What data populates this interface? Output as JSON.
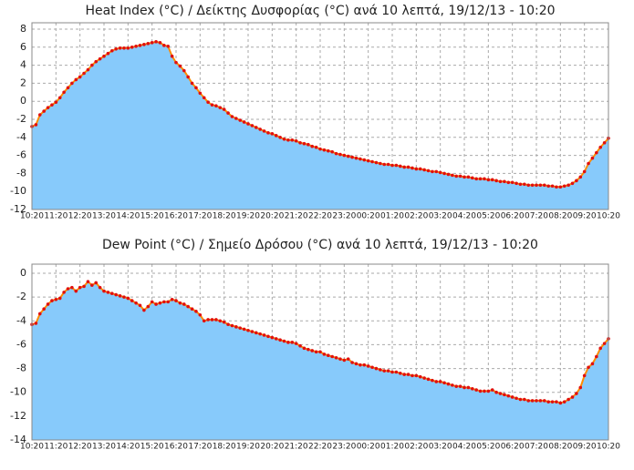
{
  "chart_data": [
    {
      "type": "area",
      "title": "Heat Index (°C) / Δείκτης Δυσφορίας (°C) ανά 10 λεπτά,  19/12/13 - 10:20",
      "categories": [
        "10:20",
        null,
        null,
        null,
        null,
        null,
        "11:20",
        null,
        null,
        null,
        null,
        null,
        "12:20",
        null,
        null,
        null,
        null,
        null,
        "13:20",
        null,
        null,
        null,
        null,
        null,
        "14:20",
        null,
        null,
        null,
        null,
        null,
        "15:20",
        null,
        null,
        null,
        null,
        null,
        "16:20",
        null,
        null,
        null,
        null,
        null,
        "17:20",
        null,
        null,
        null,
        null,
        null,
        "18:20",
        null,
        null,
        null,
        null,
        null,
        "19:20",
        null,
        null,
        null,
        null,
        null,
        "20:20",
        null,
        null,
        null,
        null,
        null,
        "21:20",
        null,
        null,
        null,
        null,
        null,
        "22:20",
        null,
        null,
        null,
        null,
        null,
        "23:20",
        null,
        null,
        null,
        null,
        null,
        "00:20",
        null,
        null,
        null,
        null,
        null,
        "01:20",
        null,
        null,
        null,
        null,
        null,
        "02:20",
        null,
        null,
        null,
        null,
        null,
        "03:20",
        null,
        null,
        null,
        null,
        null,
        "04:20",
        null,
        null,
        null,
        null,
        null,
        "05:20",
        null,
        null,
        null,
        null,
        null,
        "06:20",
        null,
        null,
        null,
        null,
        null,
        "07:20",
        null,
        null,
        null,
        null,
        null,
        "08:20",
        null,
        null,
        null,
        null,
        null,
        "09:20",
        null,
        null,
        null,
        null,
        null,
        "10:20"
      ],
      "values": [
        -2.8,
        -2.6,
        -1.5,
        -1.1,
        -0.7,
        -0.4,
        -0.1,
        0.4,
        1.0,
        1.5,
        2.0,
        2.4,
        2.7,
        3.1,
        3.5,
        4.0,
        4.4,
        4.7,
        5.0,
        5.3,
        5.6,
        5.8,
        5.9,
        5.9,
        5.9,
        6.0,
        6.1,
        6.2,
        6.3,
        6.4,
        6.5,
        6.6,
        6.5,
        6.2,
        6.1,
        5.0,
        4.3,
        3.9,
        3.4,
        2.7,
        2.0,
        1.5,
        0.9,
        0.4,
        -0.1,
        -0.4,
        -0.5,
        -0.7,
        -0.9,
        -1.3,
        -1.7,
        -1.9,
        -2.1,
        -2.3,
        -2.5,
        -2.7,
        -2.9,
        -3.1,
        -3.3,
        -3.5,
        -3.6,
        -3.8,
        -4.0,
        -4.2,
        -4.3,
        -4.3,
        -4.4,
        -4.6,
        -4.7,
        -4.8,
        -5.0,
        -5.1,
        -5.3,
        -5.4,
        -5.5,
        -5.6,
        -5.8,
        -5.9,
        -6.0,
        -6.1,
        -6.2,
        -6.3,
        -6.4,
        -6.5,
        -6.6,
        -6.7,
        -6.8,
        -6.9,
        -7.0,
        -7.0,
        -7.1,
        -7.1,
        -7.2,
        -7.3,
        -7.3,
        -7.4,
        -7.5,
        -7.5,
        -7.6,
        -7.7,
        -7.8,
        -7.8,
        -7.9,
        -8.0,
        -8.1,
        -8.2,
        -8.3,
        -8.3,
        -8.4,
        -8.4,
        -8.5,
        -8.6,
        -8.6,
        -8.6,
        -8.7,
        -8.7,
        -8.8,
        -8.9,
        -8.9,
        -9.0,
        -9.0,
        -9.1,
        -9.2,
        -9.2,
        -9.3,
        -9.3,
        -9.3,
        -9.3,
        -9.3,
        -9.4,
        -9.4,
        -9.5,
        -9.5,
        -9.4,
        -9.3,
        -9.1,
        -8.8,
        -8.4,
        -7.8,
        -6.9,
        -6.3,
        -5.7,
        -5.1,
        -4.6,
        -4.1
      ],
      "ylim": [
        -12,
        8
      ],
      "yticks": [
        -12,
        -10,
        -8,
        -6,
        -4,
        -2,
        0,
        2,
        4,
        6,
        8
      ],
      "color": "#87cafb",
      "line_color": "#ff8c00",
      "marker_color": "#e01010",
      "grid": true
    },
    {
      "type": "area",
      "title": "Dew Point (°C) / Σημείο Δρόσου (°C) ανά 10 λεπτά,  19/12/13 - 10:20",
      "categories": [
        "10:20",
        null,
        null,
        null,
        null,
        null,
        "11:20",
        null,
        null,
        null,
        null,
        null,
        "12:20",
        null,
        null,
        null,
        null,
        null,
        "13:20",
        null,
        null,
        null,
        null,
        null,
        "14:20",
        null,
        null,
        null,
        null,
        null,
        "15:20",
        null,
        null,
        null,
        null,
        null,
        "16:20",
        null,
        null,
        null,
        null,
        null,
        "17:20",
        null,
        null,
        null,
        null,
        null,
        "18:20",
        null,
        null,
        null,
        null,
        null,
        "19:20",
        null,
        null,
        null,
        null,
        null,
        "20:20",
        null,
        null,
        null,
        null,
        null,
        "21:20",
        null,
        null,
        null,
        null,
        null,
        "22:20",
        null,
        null,
        null,
        null,
        null,
        "23:20",
        null,
        null,
        null,
        null,
        null,
        "00:20",
        null,
        null,
        null,
        null,
        null,
        "01:20",
        null,
        null,
        null,
        null,
        null,
        "02:20",
        null,
        null,
        null,
        null,
        null,
        "03:20",
        null,
        null,
        null,
        null,
        null,
        "04:20",
        null,
        null,
        null,
        null,
        null,
        "05:20",
        null,
        null,
        null,
        null,
        null,
        "06:20",
        null,
        null,
        null,
        null,
        null,
        "07:20",
        null,
        null,
        null,
        null,
        null,
        "08:20",
        null,
        null,
        null,
        null,
        null,
        "09:20",
        null,
        null,
        null,
        null,
        null,
        "10:20"
      ],
      "values": [
        -4.3,
        -4.2,
        -3.4,
        -3.0,
        -2.6,
        -2.3,
        -2.2,
        -2.1,
        -1.6,
        -1.3,
        -1.2,
        -1.5,
        -1.2,
        -1.1,
        -0.7,
        -1.0,
        -0.8,
        -1.2,
        -1.5,
        -1.6,
        -1.7,
        -1.8,
        -1.9,
        -2.0,
        -2.1,
        -2.3,
        -2.5,
        -2.7,
        -3.1,
        -2.8,
        -2.4,
        -2.6,
        -2.5,
        -2.4,
        -2.4,
        -2.2,
        -2.3,
        -2.5,
        -2.6,
        -2.8,
        -3.0,
        -3.2,
        -3.5,
        -4.0,
        -3.9,
        -3.9,
        -3.9,
        -4.0,
        -4.1,
        -4.3,
        -4.4,
        -4.5,
        -4.6,
        -4.7,
        -4.8,
        -4.9,
        -5.0,
        -5.1,
        -5.2,
        -5.3,
        -5.4,
        -5.5,
        -5.6,
        -5.7,
        -5.8,
        -5.8,
        -5.9,
        -6.1,
        -6.3,
        -6.4,
        -6.5,
        -6.6,
        -6.6,
        -6.8,
        -6.9,
        -7.0,
        -7.1,
        -7.2,
        -7.3,
        -7.2,
        -7.5,
        -7.6,
        -7.7,
        -7.7,
        -7.8,
        -7.9,
        -8.0,
        -8.1,
        -8.2,
        -8.2,
        -8.3,
        -8.3,
        -8.4,
        -8.5,
        -8.5,
        -8.6,
        -8.6,
        -8.7,
        -8.8,
        -8.9,
        -9.0,
        -9.1,
        -9.1,
        -9.2,
        -9.3,
        -9.4,
        -9.5,
        -9.5,
        -9.6,
        -9.6,
        -9.7,
        -9.8,
        -9.9,
        -9.9,
        -9.9,
        -9.8,
        -10.0,
        -10.1,
        -10.2,
        -10.3,
        -10.4,
        -10.5,
        -10.6,
        -10.6,
        -10.7,
        -10.7,
        -10.7,
        -10.7,
        -10.7,
        -10.8,
        -10.8,
        -10.8,
        -10.9,
        -10.8,
        -10.6,
        -10.4,
        -10.1,
        -9.6,
        -8.6,
        -7.9,
        -7.6,
        -7.0,
        -6.3,
        -5.9,
        -5.5
      ],
      "ylim": [
        -14,
        0
      ],
      "yticks": [
        -14,
        -12,
        -10,
        -8,
        -6,
        -4,
        -2,
        0
      ],
      "color": "#87cafb",
      "line_color": "#ff8c00",
      "marker_color": "#e01010",
      "grid": true
    }
  ]
}
